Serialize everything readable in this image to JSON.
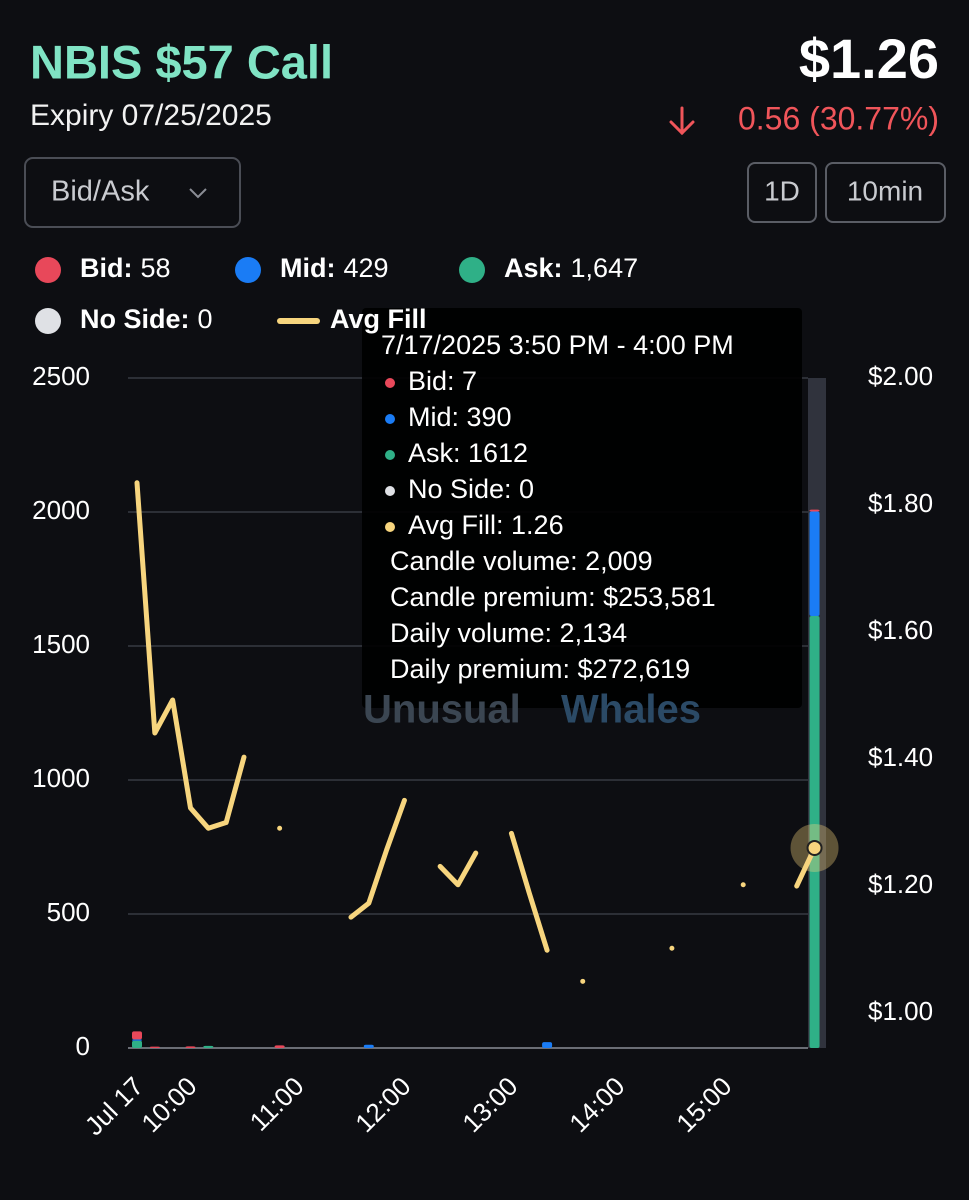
{
  "header": {
    "title": "NBIS $57 Call",
    "expiry": "Expiry 07/25/2025",
    "price": "$1.26",
    "change": "0.56 (30.77%)"
  },
  "controls": {
    "dropdown": "Bid/Ask",
    "range": "1D",
    "interval": "10min"
  },
  "tooltip": {
    "time": "7/17/2025 3:50 PM - 4:00 PM",
    "rows": [
      "Bid: 7",
      "Mid: 390",
      "Ask: 1612",
      "No Side: 0",
      "Avg Fill: 1.26"
    ],
    "details": [
      "Candle volume: 2,009",
      "Candle premium: $253,581",
      "Daily volume: 2,134",
      "Daily premium: $272,619"
    ]
  },
  "watermark": [
    "Unusual",
    "Whales"
  ],
  "chart_data": {
    "type": "stacked-bar-line",
    "categories": [
      "Jul 17",
      null,
      null,
      "10:00",
      null,
      null,
      null,
      null,
      null,
      "11:00",
      null,
      null,
      null,
      null,
      null,
      "12:00",
      null,
      null,
      null,
      null,
      null,
      "13:00",
      null,
      null,
      null,
      null,
      null,
      "14:00",
      null,
      null,
      null,
      null,
      null,
      "15:00",
      null,
      null,
      null,
      null,
      null
    ],
    "series": [
      {
        "name": "Bid:",
        "color": "#e8485a",
        "total": 58,
        "values": [
          30,
          5,
          0,
          6,
          0,
          0,
          0,
          0,
          10,
          0,
          0,
          0,
          0,
          0,
          0,
          0,
          0,
          0,
          0,
          0,
          0,
          0,
          0,
          0,
          0,
          0,
          0,
          0,
          0,
          0,
          0,
          0,
          0,
          0,
          0,
          0,
          0,
          0,
          7
        ]
      },
      {
        "name": "Mid:",
        "color": "#1a7cf5",
        "total": 429,
        "values": [
          5,
          0,
          0,
          0,
          0,
          0,
          0,
          0,
          0,
          0,
          0,
          0,
          0,
          12,
          0,
          0,
          0,
          0,
          0,
          0,
          0,
          0,
          0,
          22,
          0,
          0,
          0,
          0,
          0,
          0,
          0,
          0,
          0,
          0,
          0,
          0,
          0,
          0,
          390
        ]
      },
      {
        "name": "Ask:",
        "color": "#2fb087",
        "total": 1647,
        "total_label": "1,647",
        "values": [
          27,
          0,
          0,
          0,
          8,
          0,
          0,
          0,
          0,
          0,
          0,
          0,
          0,
          0,
          0,
          0,
          0,
          0,
          0,
          0,
          0,
          0,
          0,
          0,
          0,
          0,
          0,
          0,
          0,
          0,
          0,
          0,
          0,
          0,
          0,
          0,
          0,
          0,
          1612
        ]
      },
      {
        "name": "No Side:",
        "color": "#dfe1e5",
        "total": 0,
        "values": [
          0,
          0,
          0,
          0,
          0,
          0,
          0,
          0,
          0,
          0,
          0,
          0,
          0,
          0,
          0,
          0,
          0,
          0,
          0,
          0,
          0,
          0,
          0,
          0,
          0,
          0,
          0,
          0,
          0,
          0,
          0,
          0,
          0,
          0,
          0,
          0,
          0,
          0,
          0
        ]
      },
      {
        "name": "Avg Fill",
        "color": "#f7d57e",
        "axis": "y2",
        "values": [
          1.835,
          1.441,
          1.493,
          1.323,
          1.291,
          1.3,
          1.403,
          null,
          1.291,
          null,
          null,
          null,
          1.151,
          1.173,
          1.257,
          1.335,
          null,
          1.231,
          1.202,
          1.252,
          null,
          1.283,
          1.189,
          1.099,
          null,
          1.05,
          null,
          null,
          null,
          null,
          1.102,
          null,
          null,
          null,
          1.202,
          null,
          null,
          1.2,
          1.26
        ]
      }
    ],
    "ylim": [
      0,
      2500
    ],
    "yticks": [
      0,
      500,
      1000,
      1500,
      2000,
      2500
    ],
    "y2lim": [
      0.945,
      2.0
    ],
    "y2ticks": [
      {
        "value": 1.0,
        "label": "$1.00"
      },
      {
        "value": 1.2,
        "label": "$1.20"
      },
      {
        "value": 1.4,
        "label": "$1.40"
      },
      {
        "value": 1.6,
        "label": "$1.60"
      },
      {
        "value": 1.8,
        "label": "$1.80"
      },
      {
        "value": 2.0,
        "label": "$2.00"
      }
    ],
    "grid": true
  }
}
